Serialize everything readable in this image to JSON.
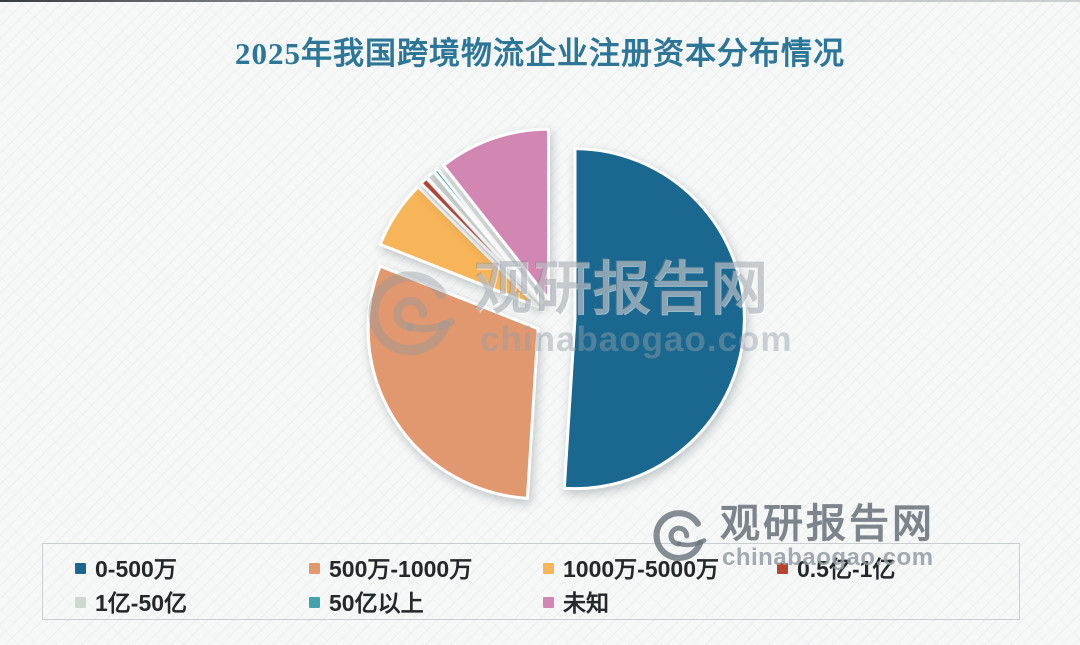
{
  "chart_data": {
    "type": "pie",
    "title": "2025年我国跨境物流企业注册资本分布情况",
    "title_color": "#2d7697",
    "legend_position": "bottom",
    "exploded": true,
    "value_unit": "%",
    "values_estimated_from_angles": true,
    "slices": [
      {
        "label": "0-500万",
        "value": 51.0,
        "color": "#1a6890"
      },
      {
        "label": "500万-1000万",
        "value": 30.0,
        "color": "#e1986f"
      },
      {
        "label": "1000万-5000万",
        "value": 6.5,
        "color": "#f7b458"
      },
      {
        "label": "0.5亿-1亿",
        "value": 0.7,
        "color": "#b4452f"
      },
      {
        "label": "1亿-50亿",
        "value": 0.8,
        "color": "#d0d6d0"
      },
      {
        "label": "50亿以上",
        "value": 0.4,
        "color": "#44a2ab"
      },
      {
        "label": "未知",
        "value": 10.6,
        "color": "#d187b2"
      }
    ]
  },
  "watermark": {
    "brand": "观研报告网",
    "domain": "chinabaogao.com"
  }
}
